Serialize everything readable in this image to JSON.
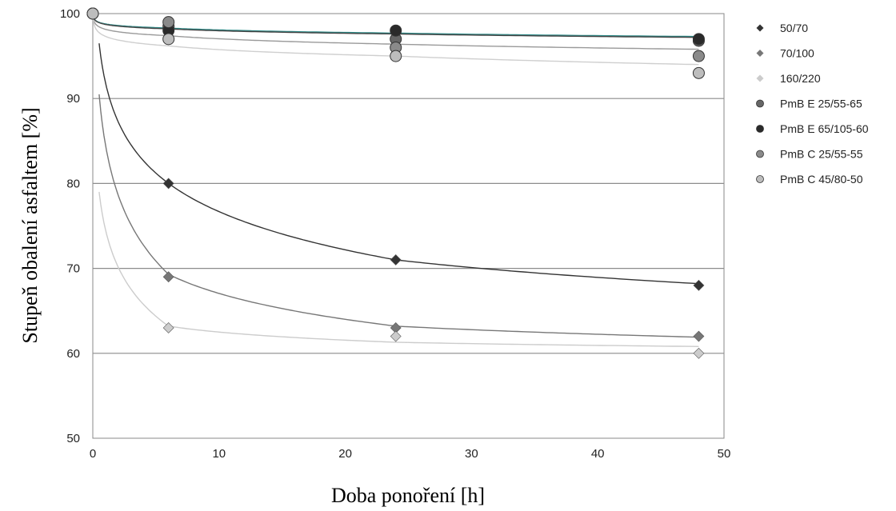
{
  "chart_data": {
    "type": "scatter",
    "title": "",
    "xlabel": "Doba ponoření [h]",
    "ylabel": "Stupeň obalení asfaltem [%]",
    "xlim": [
      0,
      50
    ],
    "ylim": [
      50,
      100
    ],
    "xticks": [
      "0",
      "10",
      "20",
      "30",
      "40",
      "50"
    ],
    "yticks": [
      "50",
      "60",
      "70",
      "80",
      "90",
      "100"
    ],
    "grid": "horizontal",
    "legend": "right",
    "series": [
      {
        "name": "50/70",
        "marker": "diamond",
        "color": "#333333",
        "x": [
          0,
          6,
          24,
          48
        ],
        "y": [
          100,
          80,
          71,
          68
        ]
      },
      {
        "name": "70/100",
        "marker": "diamond",
        "color": "#777777",
        "x": [
          0,
          6,
          24,
          48
        ],
        "y": [
          100,
          69,
          63,
          62
        ]
      },
      {
        "name": "160/220",
        "marker": "diamond",
        "color": "#cccccc",
        "x": [
          0,
          6,
          24,
          48
        ],
        "y": [
          100,
          63,
          62,
          60
        ]
      },
      {
        "name": "PmB E 25/55-65",
        "marker": "circle",
        "color": "#666666",
        "x": [
          0,
          6,
          24,
          48
        ],
        "y": [
          100,
          98.5,
          97,
          96.8
        ]
      },
      {
        "name": "PmB E 65/105-60",
        "marker": "circle",
        "color": "#2a2a2a",
        "x": [
          0,
          6,
          24,
          48
        ],
        "y": [
          100,
          98,
          98,
          97
        ]
      },
      {
        "name": "PmB C 25/55-55",
        "marker": "circle",
        "color": "#8a8a8a",
        "x": [
          0,
          6,
          24,
          48
        ],
        "y": [
          100,
          99,
          96,
          95
        ]
      },
      {
        "name": "PmB C 45/80-50",
        "marker": "circle",
        "color": "#bdbdbd",
        "x": [
          0,
          6,
          24,
          48
        ],
        "y": [
          100,
          97,
          95,
          93
        ]
      }
    ],
    "trendlines": [
      {
        "color": "#333333",
        "x": [
          0.5,
          6,
          24,
          48
        ],
        "y": [
          96.5,
          80,
          71,
          68.2
        ]
      },
      {
        "color": "#777777",
        "x": [
          0.5,
          6,
          24,
          48
        ],
        "y": [
          90.5,
          69.3,
          63.2,
          61.9
        ]
      },
      {
        "color": "#cccccc",
        "x": [
          0.5,
          6,
          24,
          48
        ],
        "y": [
          79,
          63.2,
          61.3,
          60.8
        ]
      },
      {
        "color": "#2e8b88",
        "x": [
          0,
          6,
          24,
          48
        ],
        "y": [
          99.6,
          98.3,
          97.7,
          97.3
        ]
      },
      {
        "color": "#444444",
        "x": [
          0,
          6,
          24,
          48
        ],
        "y": [
          99.6,
          98.2,
          97.6,
          97.2
        ]
      },
      {
        "color": "#9a9a9a",
        "x": [
          0,
          6,
          24,
          48
        ],
        "y": [
          99.4,
          97.4,
          96.4,
          95.8
        ]
      },
      {
        "color": "#cfcfcf",
        "x": [
          0,
          6,
          24,
          48
        ],
        "y": [
          99.2,
          96.2,
          95.0,
          94.0
        ]
      }
    ]
  }
}
